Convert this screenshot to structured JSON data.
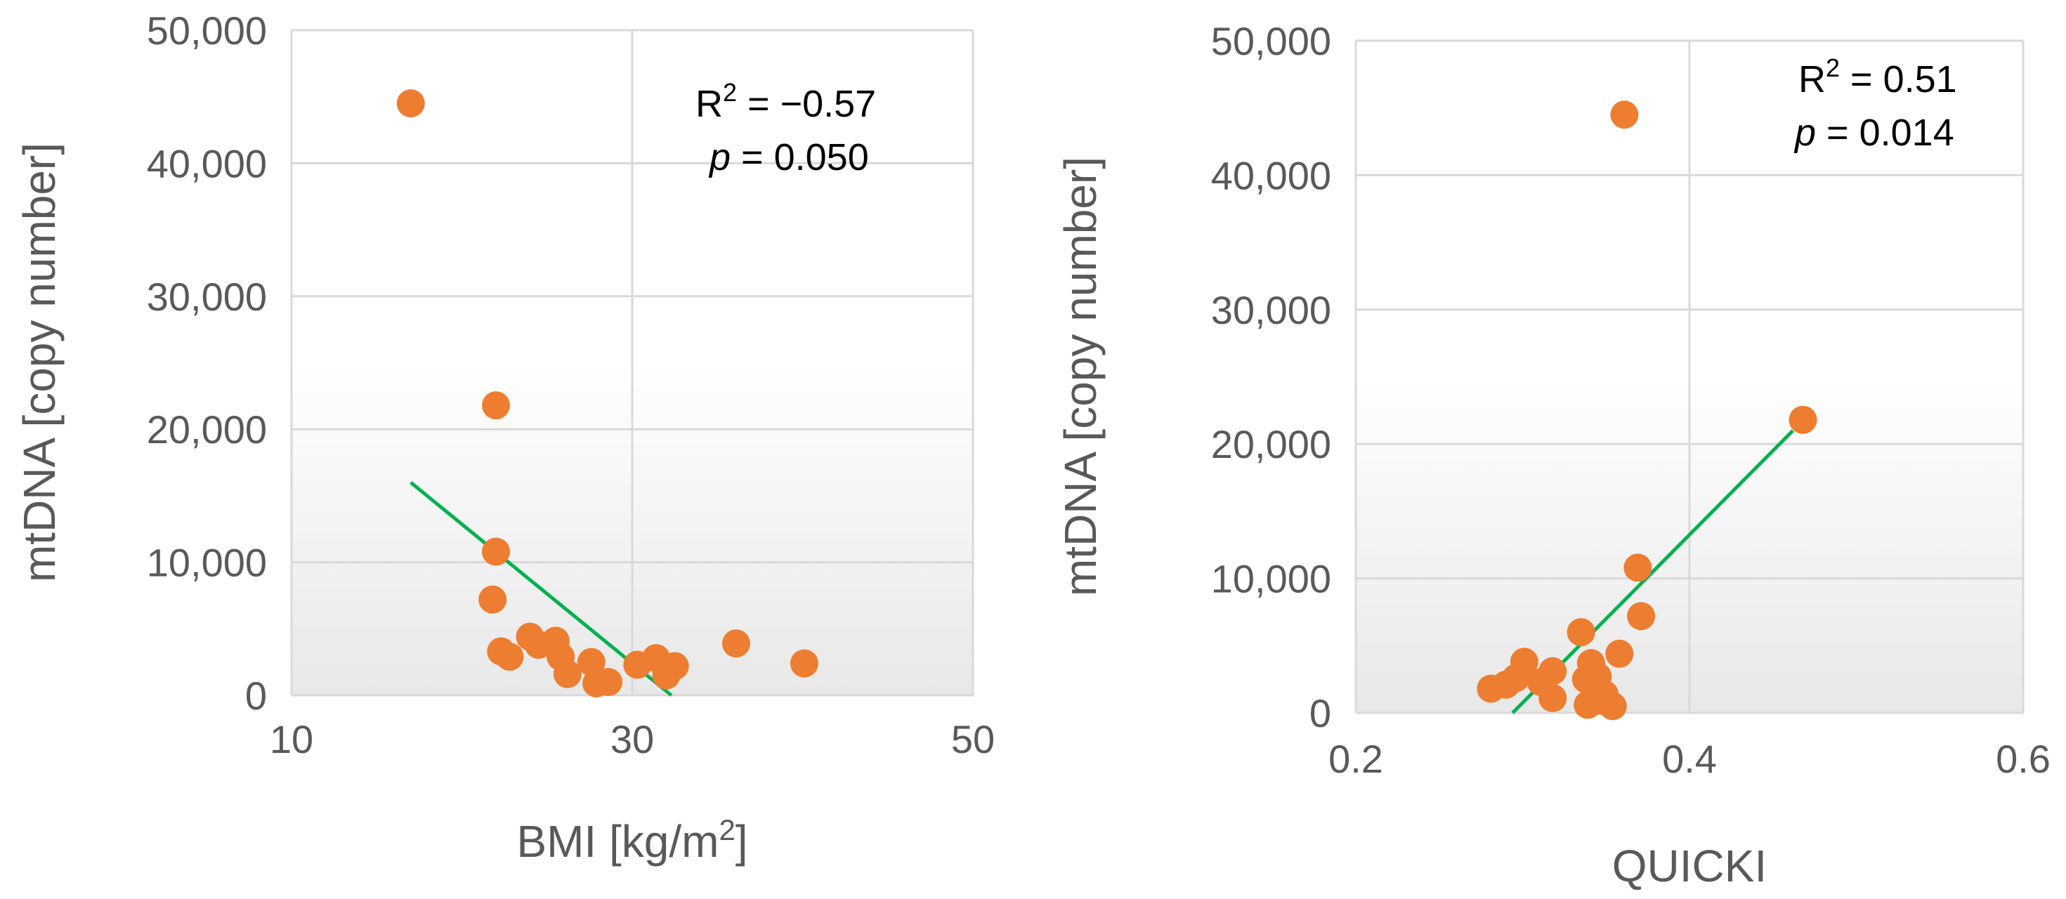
{
  "chart_data": [
    {
      "type": "scatter",
      "xlabel": "BMI [kg/m²]",
      "ylabel": "mtDNA [copy number]",
      "xlim": [
        10,
        50
      ],
      "ylim": [
        0,
        50000
      ],
      "xticks": [
        "10",
        "30",
        "50"
      ],
      "yticks": [
        "0",
        "10,000",
        "20,000",
        "30,000",
        "40,000",
        "50,000"
      ],
      "xtick_values": [
        10,
        30,
        50
      ],
      "ytick_values": [
        0,
        10000,
        20000,
        30000,
        40000,
        50000
      ],
      "grid": true,
      "legend": "none",
      "annotation": {
        "r2_label": "R² = −0.57",
        "p_italic": "p",
        "p_rest": " = 0.050"
      },
      "points": [
        {
          "x": 17.0,
          "y": 44500
        },
        {
          "x": 22.0,
          "y": 21800
        },
        {
          "x": 22.0,
          "y": 10800
        },
        {
          "x": 21.8,
          "y": 7200
        },
        {
          "x": 22.3,
          "y": 3300
        },
        {
          "x": 22.8,
          "y": 2900
        },
        {
          "x": 24.0,
          "y": 4400
        },
        {
          "x": 24.5,
          "y": 3800
        },
        {
          "x": 25.5,
          "y": 4100
        },
        {
          "x": 25.8,
          "y": 2900
        },
        {
          "x": 26.2,
          "y": 1600
        },
        {
          "x": 27.6,
          "y": 2500
        },
        {
          "x": 27.9,
          "y": 900
        },
        {
          "x": 28.6,
          "y": 1000
        },
        {
          "x": 30.3,
          "y": 2300
        },
        {
          "x": 31.4,
          "y": 2800
        },
        {
          "x": 32.0,
          "y": 1500
        },
        {
          "x": 32.5,
          "y": 2200
        },
        {
          "x": 36.1,
          "y": 3900
        },
        {
          "x": 40.1,
          "y": 2400
        }
      ],
      "trendline": {
        "x": [
          17.0,
          32.3
        ],
        "y": [
          16000,
          0
        ]
      },
      "colors": {
        "points": "#ED7D31",
        "trendline": "#00B050",
        "grid": "#D9D9D9"
      }
    },
    {
      "type": "scatter",
      "xlabel": "QUICKI",
      "ylabel": "mtDNA [copy number]",
      "xlim": [
        0.2,
        0.6
      ],
      "ylim": [
        0,
        50000
      ],
      "xticks": [
        "0.2",
        "0.4",
        "0.6"
      ],
      "yticks": [
        "0",
        "10,000",
        "20,000",
        "30,000",
        "40,000",
        "50,000"
      ],
      "xtick_values": [
        0.2,
        0.4,
        0.6
      ],
      "ytick_values": [
        0,
        10000,
        20000,
        30000,
        40000,
        50000
      ],
      "grid": true,
      "legend": "none",
      "annotation": {
        "r2_label": "R² = 0.51",
        "p_italic": "p",
        "p_rest": " = 0.014"
      },
      "points": [
        {
          "x": 0.361,
          "y": 44500
        },
        {
          "x": 0.468,
          "y": 21800
        },
        {
          "x": 0.369,
          "y": 10800
        },
        {
          "x": 0.371,
          "y": 7200
        },
        {
          "x": 0.335,
          "y": 6000
        },
        {
          "x": 0.358,
          "y": 4400
        },
        {
          "x": 0.301,
          "y": 3800
        },
        {
          "x": 0.341,
          "y": 3700
        },
        {
          "x": 0.318,
          "y": 3100
        },
        {
          "x": 0.345,
          "y": 2700
        },
        {
          "x": 0.338,
          "y": 2500
        },
        {
          "x": 0.29,
          "y": 2100
        },
        {
          "x": 0.281,
          "y": 1800
        },
        {
          "x": 0.296,
          "y": 2600
        },
        {
          "x": 0.311,
          "y": 2300
        },
        {
          "x": 0.349,
          "y": 1400
        },
        {
          "x": 0.347,
          "y": 900
        },
        {
          "x": 0.318,
          "y": 1100
        },
        {
          "x": 0.339,
          "y": 600
        },
        {
          "x": 0.354,
          "y": 500
        }
      ],
      "trendline": {
        "x": [
          0.294,
          0.462
        ],
        "y": [
          0,
          21000
        ]
      },
      "colors": {
        "points": "#ED7D31",
        "trendline": "#00B050",
        "grid": "#D9D9D9"
      }
    }
  ]
}
